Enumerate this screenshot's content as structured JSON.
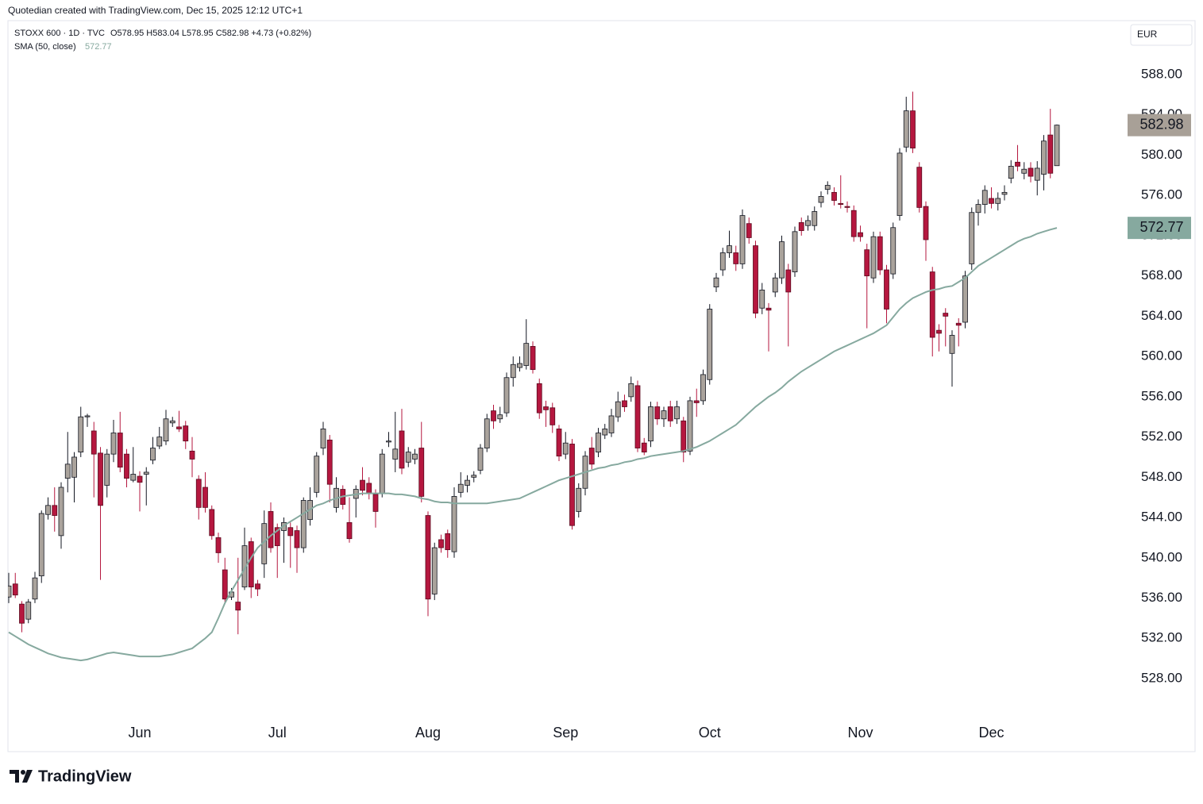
{
  "chart_data": {
    "type": "candlestick",
    "attribution": "Quotedian created with TradingView.com, Dec 15, 2025 12:12 UTC+1",
    "title": "STOXX 600 · 1D · TVC",
    "ohlc_label": "O578.95 H583.04 L578.95 C582.98 +4.73 (+0.82%)",
    "currency": "EUR",
    "logo_text": "TradingView",
    "up_color": "#aaa39c",
    "down_color": "#b5173f",
    "last_tag_color": "#a8a097",
    "categories": [
      null,
      null,
      null,
      null,
      null,
      null,
      null,
      null,
      null,
      null,
      null,
      null,
      null,
      null,
      null,
      null,
      null,
      null,
      null,
      null,
      "Jun",
      null,
      null,
      null,
      null,
      null,
      null,
      null,
      null,
      null,
      null,
      null,
      null,
      null,
      null,
      null,
      null,
      null,
      null,
      null,
      null,
      "Jul",
      null,
      null,
      null,
      null,
      null,
      null,
      null,
      null,
      null,
      null,
      null,
      null,
      null,
      null,
      null,
      null,
      null,
      null,
      null,
      null,
      null,
      null,
      "Aug",
      null,
      null,
      null,
      null,
      null,
      null,
      null,
      null,
      null,
      null,
      null,
      null,
      null,
      null,
      null,
      null,
      null,
      null,
      null,
      null,
      "Sep",
      null,
      null,
      null,
      null,
      null,
      null,
      null,
      null,
      null,
      null,
      null,
      null,
      null,
      null,
      null,
      null,
      null,
      null,
      null,
      null,
      null,
      "Oct",
      null,
      null,
      null,
      null,
      null,
      null,
      null,
      null,
      null,
      null,
      null,
      null,
      null,
      null,
      null,
      null,
      null,
      null,
      null,
      null,
      null,
      null,
      "Nov",
      null,
      null,
      null,
      null,
      null,
      null,
      null,
      null,
      null,
      null,
      null,
      null,
      null,
      null,
      null,
      null,
      null,
      null,
      null,
      "Dec",
      null,
      null,
      null,
      null,
      null,
      null,
      null,
      null,
      null,
      null
    ],
    "candles": [
      [
        536.1,
        538.5,
        535.5,
        537.2
      ],
      [
        537.4,
        538.5,
        536.0,
        536.3
      ],
      [
        535.4,
        535.7,
        532.6,
        533.5
      ],
      [
        533.9,
        535.9,
        533.5,
        535.6
      ],
      [
        535.9,
        538.6,
        535.5,
        538.0
      ],
      [
        538.2,
        544.7,
        537.5,
        544.4
      ],
      [
        544.3,
        546.0,
        543.8,
        545.2
      ],
      [
        545.2,
        547.0,
        542.6,
        544.2
      ],
      [
        542.2,
        547.5,
        540.9,
        547.0
      ],
      [
        547.9,
        552.5,
        546.5,
        549.3
      ],
      [
        548.0,
        550.5,
        545.5,
        550.0
      ],
      [
        550.5,
        555.0,
        550.0,
        554.0
      ],
      [
        554.0,
        554.3,
        553.0,
        554.1
      ],
      [
        552.6,
        553.5,
        546.0,
        550.3
      ],
      [
        550.4,
        551.0,
        537.8,
        545.2
      ],
      [
        547.2,
        550.8,
        546.0,
        550.3
      ],
      [
        550.3,
        553.7,
        549.5,
        552.4
      ],
      [
        552.4,
        554.5,
        548.5,
        549.0
      ],
      [
        550.3,
        550.8,
        547.0,
        547.9
      ],
      [
        547.7,
        551.0,
        547.5,
        548.3
      ],
      [
        548.1,
        548.6,
        544.6,
        547.5
      ],
      [
        548.3,
        549.0,
        545.2,
        548.5
      ],
      [
        549.7,
        552.0,
        549.3,
        550.9
      ],
      [
        551.1,
        553.0,
        550.8,
        552.0
      ],
      [
        551.6,
        554.7,
        551.2,
        553.8
      ],
      [
        553.4,
        554.0,
        553.0,
        553.6
      ],
      [
        553.0,
        554.6,
        552.5,
        552.8
      ],
      [
        553.1,
        553.6,
        550.8,
        551.6
      ],
      [
        550.6,
        552.0,
        548.0,
        549.8
      ],
      [
        547.8,
        548.2,
        543.8,
        545.0
      ],
      [
        547.0,
        548.5,
        544.5,
        545.0
      ],
      [
        544.8,
        545.2,
        541.8,
        542.2
      ],
      [
        542.0,
        542.5,
        539.5,
        540.5
      ],
      [
        538.8,
        540.0,
        535.6,
        535.9
      ],
      [
        536.1,
        537.0,
        535.8,
        536.6
      ],
      [
        535.6,
        540.0,
        532.4,
        534.8
      ],
      [
        537.1,
        543.0,
        536.8,
        541.2
      ],
      [
        541.6,
        542.0,
        536.0,
        537.1
      ],
      [
        537.4,
        537.8,
        536.2,
        536.9
      ],
      [
        539.4,
        544.7,
        538.0,
        543.4
      ],
      [
        544.6,
        545.5,
        540.5,
        541.0
      ],
      [
        543.0,
        543.4,
        538.0,
        541.2
      ],
      [
        542.7,
        544.0,
        539.5,
        543.5
      ],
      [
        543.0,
        543.5,
        539.0,
        542.2
      ],
      [
        542.7,
        543.2,
        538.5,
        541.0
      ],
      [
        541.0,
        546.0,
        540.5,
        545.7
      ],
      [
        543.8,
        547.0,
        543.2,
        545.7
      ],
      [
        546.5,
        550.5,
        546.0,
        550.1
      ],
      [
        550.9,
        553.5,
        550.2,
        552.8
      ],
      [
        551.7,
        552.2,
        545.5,
        547.3
      ],
      [
        545.0,
        548.0,
        544.5,
        546.9
      ],
      [
        546.8,
        547.2,
        544.8,
        545.3
      ],
      [
        543.5,
        546.0,
        541.5,
        541.9
      ],
      [
        545.9,
        547.2,
        544.0,
        546.8
      ],
      [
        547.7,
        549.0,
        546.2,
        546.7
      ],
      [
        547.4,
        548.0,
        545.8,
        546.4
      ],
      [
        546.3,
        546.8,
        543.0,
        544.6
      ],
      [
        546.4,
        550.8,
        546.0,
        550.3
      ],
      [
        551.5,
        552.5,
        551.0,
        551.6
      ],
      [
        549.8,
        554.5,
        548.5,
        550.8
      ],
      [
        552.6,
        554.8,
        548.3,
        548.9
      ],
      [
        549.5,
        551.0,
        549.0,
        550.5
      ],
      [
        549.8,
        550.8,
        549.3,
        550.3
      ],
      [
        550.9,
        553.5,
        545.5,
        546.1
      ],
      [
        544.2,
        544.6,
        534.2,
        535.9
      ],
      [
        536.4,
        541.5,
        535.8,
        541.0
      ],
      [
        541.8,
        542.3,
        540.5,
        541.0
      ],
      [
        542.4,
        542.8,
        540.0,
        540.8
      ],
      [
        540.6,
        547.0,
        540.0,
        546.1
      ],
      [
        546.5,
        548.5,
        546.0,
        547.3
      ],
      [
        547.2,
        548.2,
        546.5,
        547.7
      ],
      [
        548.0,
        548.6,
        547.5,
        548.2
      ],
      [
        548.7,
        551.3,
        548.3,
        550.9
      ],
      [
        550.9,
        554.3,
        550.5,
        553.8
      ],
      [
        554.6,
        555.2,
        552.8,
        553.6
      ],
      [
        553.8,
        555.0,
        553.4,
        554.2
      ],
      [
        554.4,
        558.4,
        554.0,
        557.9
      ],
      [
        557.9,
        560.0,
        557.0,
        559.2
      ],
      [
        558.9,
        560.0,
        558.5,
        559.3
      ],
      [
        559.1,
        563.7,
        558.7,
        561.3
      ],
      [
        561.0,
        561.5,
        558.3,
        558.7
      ],
      [
        557.3,
        557.8,
        553.8,
        554.4
      ],
      [
        555.0,
        555.6,
        553.0,
        554.7
      ],
      [
        554.9,
        555.4,
        552.4,
        553.2
      ],
      [
        552.8,
        553.2,
        549.6,
        550.1
      ],
      [
        550.3,
        552.5,
        549.8,
        551.4
      ],
      [
        551.3,
        551.8,
        542.8,
        543.2
      ],
      [
        544.6,
        547.4,
        544.0,
        546.9
      ],
      [
        546.9,
        550.6,
        546.2,
        550.1
      ],
      [
        550.9,
        552.0,
        548.8,
        549.3
      ],
      [
        550.5,
        552.9,
        550.0,
        552.4
      ],
      [
        552.2,
        553.3,
        551.8,
        552.8
      ],
      [
        552.4,
        554.8,
        552.0,
        554.1
      ],
      [
        554.0,
        556.5,
        553.5,
        555.5
      ],
      [
        555.6,
        556.2,
        554.5,
        555.0
      ],
      [
        556.0,
        558.0,
        555.5,
        557.3
      ],
      [
        557.1,
        557.6,
        550.5,
        550.9
      ],
      [
        551.4,
        551.9,
        550.2,
        550.5
      ],
      [
        551.6,
        555.5,
        551.0,
        555.0
      ],
      [
        555.0,
        555.5,
        553.2,
        553.8
      ],
      [
        553.8,
        555.0,
        553.0,
        554.6
      ],
      [
        555.0,
        555.6,
        553.0,
        553.6
      ],
      [
        553.8,
        555.6,
        553.3,
        555.0
      ],
      [
        553.6,
        554.0,
        549.5,
        550.5
      ],
      [
        550.6,
        556.0,
        550.2,
        555.6
      ],
      [
        555.6,
        556.8,
        554.0,
        555.4
      ],
      [
        555.6,
        558.7,
        555.2,
        558.2
      ],
      [
        557.7,
        565.2,
        557.2,
        564.7
      ],
      [
        566.9,
        568.3,
        566.4,
        567.8
      ],
      [
        568.6,
        570.8,
        568.0,
        570.3
      ],
      [
        570.3,
        572.5,
        569.8,
        571.0
      ],
      [
        570.3,
        571.0,
        568.5,
        569.2
      ],
      [
        569.2,
        574.6,
        568.7,
        574.0
      ],
      [
        573.2,
        573.8,
        571.2,
        571.8
      ],
      [
        571.0,
        571.5,
        563.8,
        564.3
      ],
      [
        564.8,
        567.3,
        564.2,
        566.6
      ],
      [
        564.8,
        565.3,
        560.5,
        564.6
      ],
      [
        566.4,
        568.3,
        565.9,
        567.8
      ],
      [
        567.8,
        572.0,
        567.2,
        571.4
      ],
      [
        568.6,
        569.2,
        561.0,
        566.4
      ],
      [
        568.4,
        572.9,
        567.9,
        572.4
      ],
      [
        573.3,
        573.8,
        572.0,
        572.5
      ],
      [
        573.0,
        574.0,
        572.5,
        573.5
      ],
      [
        573.0,
        574.9,
        572.5,
        574.4
      ],
      [
        575.3,
        576.4,
        574.8,
        575.9
      ],
      [
        576.6,
        577.4,
        576.1,
        577.0
      ],
      [
        576.3,
        576.8,
        575.0,
        575.5
      ],
      [
        575.2,
        578.0,
        574.7,
        575.1
      ],
      [
        574.9,
        575.4,
        574.3,
        574.8
      ],
      [
        574.5,
        575.0,
        571.4,
        571.9
      ],
      [
        572.3,
        573.0,
        571.4,
        571.9
      ],
      [
        570.6,
        571.2,
        562.8,
        568.0
      ],
      [
        567.8,
        572.4,
        567.3,
        571.9
      ],
      [
        571.9,
        572.4,
        568.1,
        568.6
      ],
      [
        568.6,
        569.1,
        563.3,
        564.7
      ],
      [
        568.2,
        573.3,
        567.7,
        572.8
      ],
      [
        574.0,
        580.7,
        573.5,
        580.2
      ],
      [
        580.8,
        585.8,
        580.3,
        584.4
      ],
      [
        584.4,
        586.3,
        580.2,
        580.7
      ],
      [
        578.8,
        579.3,
        574.3,
        574.8
      ],
      [
        574.9,
        575.4,
        569.5,
        571.6
      ],
      [
        568.4,
        568.9,
        560.0,
        561.9
      ],
      [
        562.6,
        563.2,
        560.5,
        562.3
      ],
      [
        564.3,
        564.8,
        561.0,
        564.0
      ],
      [
        560.3,
        562.6,
        557.0,
        562.1
      ],
      [
        563.3,
        563.8,
        561.0,
        563.1
      ],
      [
        563.4,
        568.5,
        562.8,
        568.0
      ],
      [
        569.2,
        574.8,
        568.6,
        574.3
      ],
      [
        574.3,
        575.6,
        573.0,
        575.1
      ],
      [
        575.1,
        577.0,
        574.2,
        576.5
      ],
      [
        575.7,
        576.8,
        574.7,
        575.2
      ],
      [
        575.2,
        576.3,
        574.5,
        575.7
      ],
      [
        576.1,
        577.0,
        575.5,
        576.3
      ],
      [
        577.7,
        579.5,
        577.2,
        578.9
      ],
      [
        579.3,
        581.0,
        578.4,
        578.9
      ],
      [
        578.2,
        579.3,
        577.6,
        578.6
      ],
      [
        578.7,
        579.3,
        577.3,
        577.9
      ],
      [
        577.5,
        579.4,
        576.0,
        578.7
      ],
      [
        578.1,
        582.0,
        576.5,
        581.4
      ],
      [
        582.0,
        584.6,
        577.7,
        578.2
      ],
      [
        578.95,
        583.04,
        578.95,
        582.98
      ]
    ],
    "sma": {
      "name": "SMA (50, close)",
      "color": "#86a99f",
      "values": [
        532.6,
        532.2,
        531.8,
        531.4,
        531.1,
        530.8,
        530.5,
        530.3,
        530.1,
        530.0,
        529.9,
        529.8,
        529.9,
        530.1,
        530.3,
        530.5,
        530.6,
        530.5,
        530.4,
        530.3,
        530.2,
        530.2,
        530.2,
        530.2,
        530.3,
        530.4,
        530.6,
        530.8,
        531.0,
        531.5,
        532.0,
        532.6,
        534.0,
        535.5,
        536.7,
        537.8,
        538.9,
        540.0,
        541.0,
        541.6,
        542.2,
        542.7,
        543.2,
        543.6,
        544.0,
        544.4,
        544.8,
        545.2,
        545.4,
        545.7,
        545.9,
        546.1,
        546.2,
        546.3,
        546.4,
        546.4,
        546.4,
        546.4,
        546.4,
        546.3,
        546.3,
        546.2,
        546.1,
        545.9,
        545.8,
        545.6,
        545.5,
        545.5,
        545.4,
        545.4,
        545.4,
        545.4,
        545.4,
        545.4,
        545.5,
        545.6,
        545.7,
        545.8,
        545.9,
        546.2,
        546.5,
        546.8,
        547.1,
        547.4,
        547.7,
        547.9,
        548.1,
        548.3,
        548.5,
        548.7,
        548.9,
        549.0,
        549.2,
        549.3,
        549.5,
        549.6,
        549.8,
        549.9,
        550.1,
        550.2,
        550.3,
        550.4,
        550.5,
        550.6,
        550.8,
        551.0,
        551.3,
        551.6,
        552.0,
        552.4,
        552.8,
        553.2,
        553.8,
        554.4,
        555.0,
        555.5,
        556.0,
        556.4,
        556.9,
        557.5,
        558.0,
        558.5,
        558.9,
        559.3,
        559.7,
        560.1,
        560.5,
        560.8,
        561.1,
        561.4,
        561.7,
        562.0,
        562.3,
        562.7,
        563.1,
        563.9,
        564.7,
        565.3,
        565.8,
        566.1,
        566.4,
        566.6,
        566.7,
        566.9,
        567.0,
        567.4,
        567.8,
        568.4,
        569.0,
        569.4,
        569.8,
        570.2,
        570.6,
        571.0,
        571.4,
        571.7,
        571.9,
        572.2,
        572.4,
        572.6,
        572.77
      ]
    },
    "ylim": [
      524.45,
      593.36
    ],
    "yticks": [
      {
        "value": 528,
        "label": "528.00"
      },
      {
        "value": 532,
        "label": "532.00"
      },
      {
        "value": 536,
        "label": "536.00"
      },
      {
        "value": 540,
        "label": "540.00"
      },
      {
        "value": 544,
        "label": "544.00"
      },
      {
        "value": 548,
        "label": "548.00"
      },
      {
        "value": 552,
        "label": "552.00"
      },
      {
        "value": 556,
        "label": "556.00"
      },
      {
        "value": 560,
        "label": "560.00"
      },
      {
        "value": 564,
        "label": "564.00"
      },
      {
        "value": 568,
        "label": "568.00"
      },
      {
        "value": 572,
        "label": "572.00"
      },
      {
        "value": 576,
        "label": "576.00"
      },
      {
        "value": 580,
        "label": "580.00"
      },
      {
        "value": 584,
        "label": "584.00"
      },
      {
        "value": 588,
        "label": "588.00"
      }
    ],
    "grid": false
  }
}
